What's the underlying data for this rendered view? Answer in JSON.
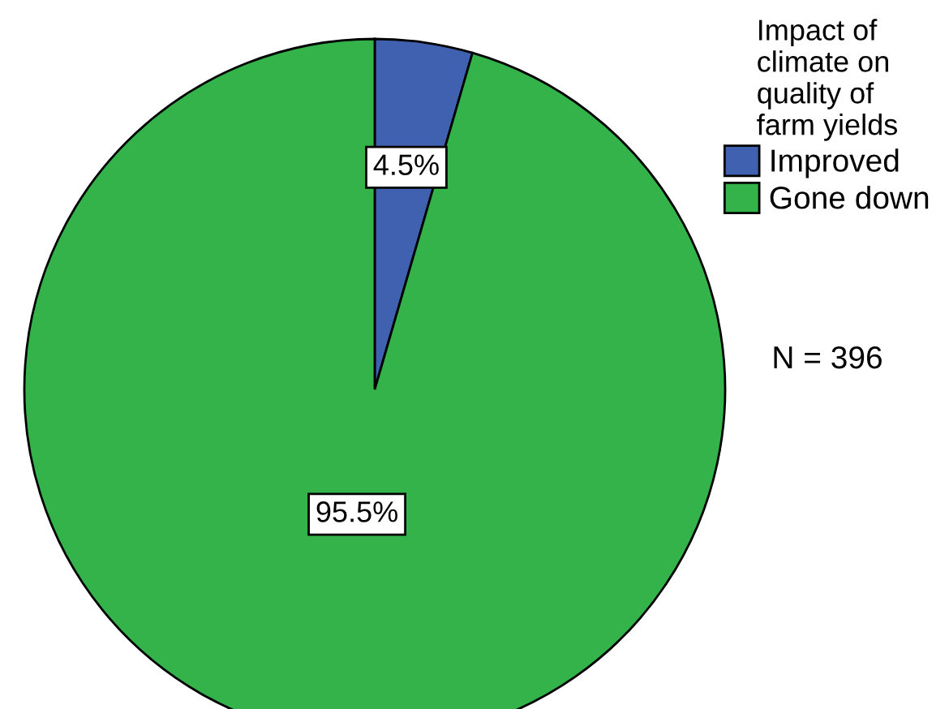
{
  "chart_data": {
    "type": "pie",
    "legend_title": "Impact of\nclimate on\nquality of\nfarm yields",
    "categories": [
      "Improved",
      "Gone down"
    ],
    "values": [
      4.5,
      95.5
    ],
    "colors": [
      "#4060b0",
      "#33b34a"
    ],
    "value_labels": [
      "4.5%",
      "95.5%"
    ],
    "legend": "top right",
    "annotations": [
      "N = 396"
    ]
  }
}
